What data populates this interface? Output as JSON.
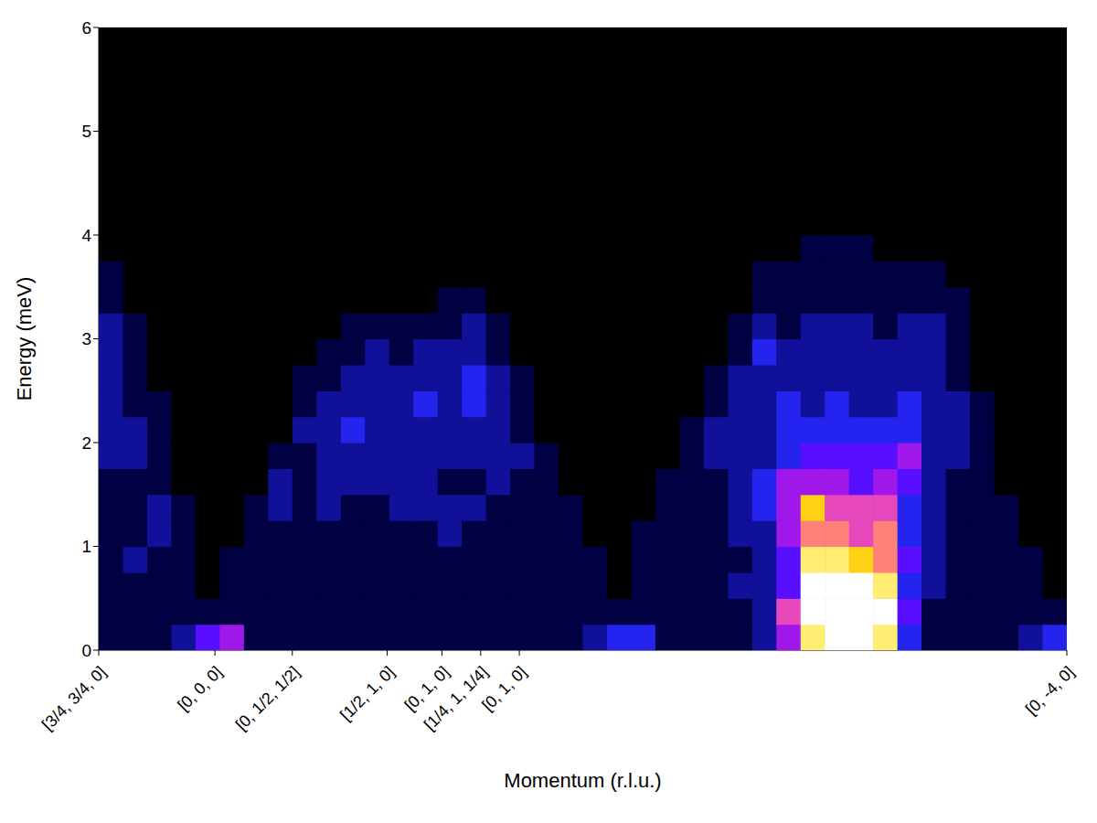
{
  "chart_data": {
    "type": "heatmap",
    "xlabel": "Momentum (r.l.u.)",
    "ylabel": "Energy (meV)",
    "grid": false,
    "xlim": [
      0,
      8.841
    ],
    "xticks": [
      {
        "value": 0,
        "label": "[3/4, 3/4, 0]"
      },
      {
        "value": 1.061,
        "label": "[0, 0, 0]"
      },
      {
        "value": 1.768,
        "label": "[0, 1/2, 1/2]"
      },
      {
        "value": 2.634,
        "label": "[1/2, 1, 0]"
      },
      {
        "value": 3.134,
        "label": "[0, 1, 0]"
      },
      {
        "value": 3.488,
        "label": "[1/4, 1, 1/4]"
      },
      {
        "value": 3.841,
        "label": "[0, 1, 0]"
      },
      {
        "value": 8.841,
        "label": "[0, -4, 0]"
      }
    ],
    "ylim": [
      0,
      6
    ],
    "yticks": [
      0,
      1,
      2,
      3,
      4,
      5,
      6
    ],
    "color_range": [
      0,
      10
    ],
    "x": [
      0.111,
      0.332,
      0.553,
      0.774,
      0.995,
      1.216,
      1.437,
      1.658,
      1.879,
      2.1,
      2.321,
      2.542,
      2.763,
      2.984,
      3.205,
      3.426,
      3.647,
      3.868,
      4.089,
      4.31,
      4.531,
      4.752,
      4.973,
      5.194,
      5.415,
      5.636,
      5.857,
      6.078,
      6.299,
      6.52,
      6.741,
      6.962,
      7.183,
      7.404,
      7.625,
      7.846,
      8.067,
      8.288,
      8.509,
      8.73
    ],
    "y": [
      0.125,
      0.375,
      0.625,
      0.875,
      1.125,
      1.375,
      1.625,
      1.875,
      2.125,
      2.375,
      2.625,
      2.875,
      3.125,
      3.375,
      3.625,
      3.875,
      4.125,
      4.375
    ],
    "intensity": [
      [
        1,
        1,
        1,
        1,
        1,
        1,
        1,
        2,
        2,
        2,
        2,
        2,
        2,
        1,
        1,
        0,
        0,
        0
      ],
      [
        1,
        1,
        1,
        2,
        1,
        1,
        1,
        2,
        2,
        1,
        1,
        1,
        1,
        0,
        0,
        0,
        0,
        0
      ],
      [
        1,
        1,
        1,
        1,
        2,
        2,
        1,
        1,
        1,
        1,
        0,
        0,
        0,
        0,
        0,
        0,
        0,
        0
      ],
      [
        2,
        1,
        1,
        1,
        1,
        1,
        0,
        0,
        0,
        0,
        0,
        0,
        0,
        0,
        0,
        0,
        0,
        0
      ],
      [
        4,
        1,
        0,
        0,
        0,
        0,
        0,
        0,
        0,
        0,
        0,
        0,
        0,
        0,
        0,
        0,
        0,
        0
      ],
      [
        5,
        1,
        1,
        1,
        0,
        0,
        0,
        0,
        0,
        0,
        0,
        0,
        0,
        0,
        0,
        0,
        0,
        0
      ],
      [
        1,
        1,
        1,
        1,
        1,
        1,
        0,
        0,
        0,
        0,
        0,
        0,
        0,
        0,
        0,
        0,
        0,
        0
      ],
      [
        1,
        1,
        1,
        1,
        1,
        2,
        2,
        1,
        0,
        0,
        0,
        0,
        0,
        0,
        0,
        0,
        0,
        0
      ],
      [
        1,
        1,
        1,
        1,
        1,
        1,
        1,
        1,
        2,
        1,
        1,
        0,
        0,
        0,
        0,
        0,
        0,
        0
      ],
      [
        1,
        1,
        1,
        1,
        1,
        2,
        2,
        2,
        2,
        2,
        1,
        1,
        0,
        0,
        0,
        0,
        0,
        0
      ],
      [
        1,
        1,
        1,
        1,
        1,
        1,
        2,
        2,
        3,
        2,
        2,
        1,
        1,
        0,
        0,
        0,
        0,
        0
      ],
      [
        1,
        1,
        1,
        1,
        1,
        1,
        2,
        2,
        2,
        2,
        2,
        2,
        1,
        0,
        0,
        0,
        0,
        0
      ],
      [
        1,
        1,
        1,
        1,
        1,
        2,
        2,
        2,
        2,
        2,
        2,
        1,
        1,
        0,
        0,
        0,
        0,
        0
      ],
      [
        1,
        1,
        1,
        1,
        1,
        2,
        2,
        2,
        2,
        3,
        2,
        2,
        1,
        0,
        0,
        0,
        0,
        0
      ],
      [
        1,
        1,
        1,
        1,
        2,
        2,
        1,
        2,
        2,
        2,
        2,
        2,
        1,
        1,
        0,
        0,
        0,
        0
      ],
      [
        1,
        1,
        1,
        1,
        1,
        2,
        1,
        2,
        2,
        3,
        3,
        2,
        2,
        1,
        0,
        0,
        0,
        0
      ],
      [
        1,
        1,
        1,
        1,
        1,
        1,
        2,
        2,
        2,
        2,
        2,
        1,
        1,
        0,
        0,
        0,
        0,
        0
      ],
      [
        1,
        1,
        1,
        1,
        1,
        1,
        1,
        2,
        1,
        1,
        1,
        0,
        0,
        0,
        0,
        0,
        0,
        0
      ],
      [
        1,
        1,
        1,
        1,
        1,
        1,
        1,
        1,
        0,
        0,
        0,
        0,
        0,
        0,
        0,
        0,
        0,
        0
      ],
      [
        1,
        1,
        1,
        1,
        1,
        1,
        0,
        0,
        0,
        0,
        0,
        0,
        0,
        0,
        0,
        0,
        0,
        0
      ],
      [
        2,
        1,
        1,
        1,
        0,
        0,
        0,
        0,
        0,
        0,
        0,
        0,
        0,
        0,
        0,
        0,
        0,
        0
      ],
      [
        3,
        1,
        0,
        0,
        0,
        0,
        0,
        0,
        0,
        0,
        0,
        0,
        0,
        0,
        0,
        0,
        0,
        0
      ],
      [
        3,
        1,
        1,
        1,
        1,
        0,
        0,
        0,
        0,
        0,
        0,
        0,
        0,
        0,
        0,
        0,
        0,
        0
      ],
      [
        1,
        1,
        1,
        1,
        1,
        1,
        1,
        0,
        0,
        0,
        0,
        0,
        0,
        0,
        0,
        0,
        0,
        0
      ],
      [
        1,
        1,
        1,
        1,
        1,
        1,
        1,
        1,
        1,
        0,
        0,
        0,
        0,
        0,
        0,
        0,
        0,
        0
      ],
      [
        1,
        1,
        1,
        1,
        1,
        1,
        1,
        2,
        2,
        1,
        1,
        0,
        0,
        0,
        0,
        0,
        0,
        0
      ],
      [
        1,
        1,
        2,
        1,
        2,
        2,
        2,
        2,
        2,
        2,
        2,
        1,
        1,
        0,
        0,
        0,
        0,
        0
      ],
      [
        2,
        2,
        2,
        2,
        2,
        3,
        3,
        2,
        2,
        2,
        2,
        3,
        2,
        1,
        1,
        0,
        0,
        0
      ],
      [
        5,
        6,
        4,
        4,
        5,
        5,
        5,
        3,
        3,
        3,
        2,
        2,
        1,
        1,
        1,
        0,
        0,
        0
      ],
      [
        9,
        10,
        10,
        9,
        7,
        8,
        5,
        4,
        3,
        2,
        2,
        2,
        2,
        1,
        1,
        1,
        0,
        0
      ],
      [
        10,
        10,
        10,
        9,
        7,
        6,
        5,
        4,
        3,
        3,
        2,
        2,
        2,
        1,
        1,
        1,
        0,
        0
      ],
      [
        10,
        10,
        10,
        8,
        6,
        6,
        4,
        4,
        3,
        2,
        2,
        2,
        2,
        1,
        1,
        1,
        0,
        0
      ],
      [
        9,
        10,
        9,
        7,
        7,
        6,
        5,
        4,
        3,
        2,
        2,
        2,
        1,
        1,
        1,
        0,
        0,
        0
      ],
      [
        3,
        4,
        3,
        4,
        3,
        3,
        4,
        5,
        3,
        3,
        2,
        2,
        2,
        1,
        1,
        0,
        0,
        0
      ],
      [
        1,
        1,
        2,
        2,
        2,
        2,
        2,
        2,
        2,
        2,
        2,
        2,
        2,
        1,
        1,
        0,
        0,
        0
      ],
      [
        1,
        1,
        1,
        1,
        1,
        1,
        1,
        2,
        2,
        2,
        1,
        1,
        1,
        1,
        0,
        0,
        0,
        0
      ],
      [
        1,
        1,
        1,
        1,
        1,
        1,
        1,
        1,
        1,
        1,
        0,
        0,
        0,
        0,
        0,
        0,
        0,
        0
      ],
      [
        1,
        1,
        1,
        1,
        1,
        1,
        0,
        0,
        0,
        0,
        0,
        0,
        0,
        0,
        0,
        0,
        0,
        0
      ],
      [
        2,
        1,
        1,
        1,
        0,
        0,
        0,
        0,
        0,
        0,
        0,
        0,
        0,
        0,
        0,
        0,
        0,
        0
      ],
      [
        3,
        1,
        0,
        0,
        0,
        0,
        0,
        0,
        0,
        0,
        0,
        0,
        0,
        0,
        0,
        0,
        0,
        0
      ]
    ]
  }
}
